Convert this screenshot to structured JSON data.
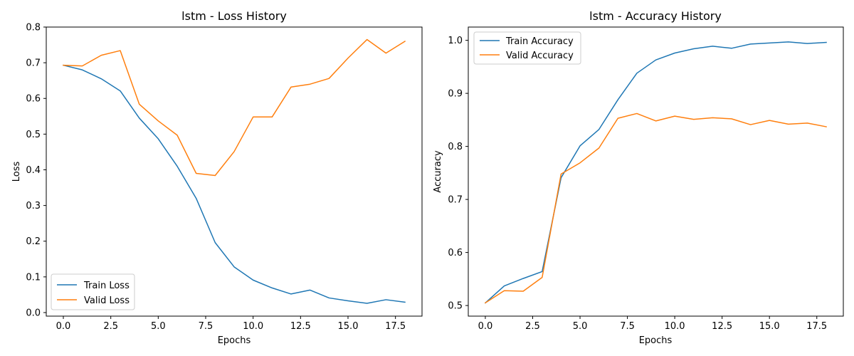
{
  "colors": {
    "train": "#1f77b4",
    "valid": "#ff7f0e"
  },
  "chart_data": [
    {
      "type": "line",
      "title": "lstm - Loss History",
      "xlabel": "Epochs",
      "ylabel": "Loss",
      "xlim": [
        -0.9,
        18.9
      ],
      "ylim": [
        -0.01,
        0.8
      ],
      "xticks": [
        0.0,
        2.5,
        5.0,
        7.5,
        10.0,
        12.5,
        15.0,
        17.5
      ],
      "xtick_labels": [
        "0.0",
        "2.5",
        "5.0",
        "7.5",
        "10.0",
        "12.5",
        "15.0",
        "17.5"
      ],
      "yticks": [
        0.0,
        0.1,
        0.2,
        0.3,
        0.4,
        0.5,
        0.6,
        0.7,
        0.8
      ],
      "ytick_labels": [
        "0.0",
        "0.1",
        "0.2",
        "0.3",
        "0.4",
        "0.5",
        "0.6",
        "0.7",
        "0.8"
      ],
      "legend_position": "lower-left",
      "x": [
        0,
        1,
        2,
        3,
        4,
        5,
        6,
        7,
        8,
        9,
        10,
        11,
        12,
        13,
        14,
        15,
        16,
        17,
        18
      ],
      "series": [
        {
          "name": "Train Loss",
          "color_key": "train",
          "values": [
            0.693,
            0.68,
            0.655,
            0.621,
            0.545,
            0.487,
            0.41,
            0.32,
            0.196,
            0.128,
            0.091,
            0.069,
            0.052,
            0.063,
            0.041,
            0.033,
            0.026,
            0.036,
            0.029
          ]
        },
        {
          "name": "Valid Loss",
          "color_key": "valid",
          "values": [
            0.693,
            0.691,
            0.721,
            0.734,
            0.584,
            0.537,
            0.497,
            0.39,
            0.384,
            0.451,
            0.548,
            0.548,
            0.632,
            0.64,
            0.656,
            0.713,
            0.765,
            0.727,
            0.76
          ]
        }
      ]
    },
    {
      "type": "line",
      "title": "lstm - Accuracy History",
      "xlabel": "Epochs",
      "ylabel": "Accuracy",
      "xlim": [
        -0.9,
        18.9
      ],
      "ylim": [
        0.48,
        1.025
      ],
      "xticks": [
        0.0,
        2.5,
        5.0,
        7.5,
        10.0,
        12.5,
        15.0,
        17.5
      ],
      "xtick_labels": [
        "0.0",
        "2.5",
        "5.0",
        "7.5",
        "10.0",
        "12.5",
        "15.0",
        "17.5"
      ],
      "yticks": [
        0.5,
        0.6,
        0.7,
        0.8,
        0.9,
        1.0
      ],
      "ytick_labels": [
        "0.5",
        "0.6",
        "0.7",
        "0.8",
        "0.9",
        "1.0"
      ],
      "legend_position": "top-left",
      "x": [
        0,
        1,
        2,
        3,
        4,
        5,
        6,
        7,
        8,
        9,
        10,
        11,
        12,
        13,
        14,
        15,
        16,
        17,
        18
      ],
      "series": [
        {
          "name": "Train Accuracy",
          "color_key": "train",
          "values": [
            0.505,
            0.537,
            0.551,
            0.564,
            0.741,
            0.801,
            0.832,
            0.888,
            0.938,
            0.963,
            0.976,
            0.984,
            0.989,
            0.985,
            0.993,
            0.995,
            0.997,
            0.994,
            0.996
          ]
        },
        {
          "name": "Valid Accuracy",
          "color_key": "valid",
          "values": [
            0.505,
            0.528,
            0.527,
            0.553,
            0.748,
            0.769,
            0.797,
            0.853,
            0.862,
            0.848,
            0.857,
            0.851,
            0.854,
            0.852,
            0.841,
            0.849,
            0.842,
            0.844,
            0.837
          ]
        }
      ]
    }
  ]
}
